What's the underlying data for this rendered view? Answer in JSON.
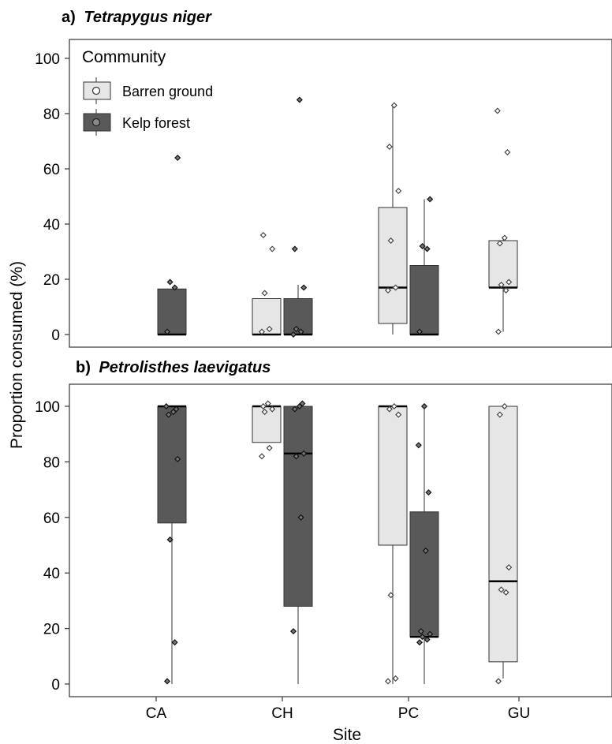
{
  "figure": {
    "ylabel": "Proportion consumed (%)",
    "xlabel": "Site"
  },
  "legend": {
    "title": "Community",
    "items": [
      {
        "label": "Barren ground",
        "fill": "#e6e6e6"
      },
      {
        "label": "Kelp forest",
        "fill": "#595959"
      }
    ]
  },
  "chart_data": [
    {
      "type": "box",
      "panel_prefix": "a)",
      "title": "Tetrapygus niger",
      "categories": [
        "CA",
        "CH",
        "PC",
        "GU"
      ],
      "yticks": [
        0,
        20,
        40,
        60,
        80,
        100
      ],
      "ylim": [
        -4,
        106
      ],
      "series": [
        {
          "name": "Barren ground",
          "color": "#e6e6e6",
          "boxes": [
            null,
            {
              "category": "CH",
              "q1": 0,
              "median": 0,
              "q3": 13,
              "wlo": 0,
              "whi": 13,
              "points": [
                1,
                2,
                15,
                31,
                36
              ]
            },
            {
              "category": "PC",
              "q1": 4,
              "median": 17,
              "q3": 46,
              "wlo": 0,
              "whi": 83,
              "points": [
                16,
                17,
                34,
                52,
                68,
                83
              ]
            },
            {
              "category": "GU",
              "q1": 17,
              "median": 17,
              "q3": 34,
              "wlo": 1,
              "whi": 35,
              "points": [
                1,
                16,
                18,
                19,
                33,
                35,
                66,
                81
              ]
            }
          ]
        },
        {
          "name": "Kelp forest",
          "color": "#595959",
          "boxes": [
            {
              "category": "CA",
              "q1": 0,
              "median": 0,
              "q3": 16.5,
              "wlo": 0,
              "whi": 16.5,
              "points": [
                1,
                17,
                19,
                64
              ]
            },
            {
              "category": "CH",
              "q1": 0,
              "median": 0,
              "q3": 13,
              "wlo": 0,
              "whi": 18,
              "points": [
                0,
                1,
                2,
                17,
                31,
                85
              ]
            },
            {
              "category": "PC",
              "q1": 0,
              "median": 0,
              "q3": 25,
              "wlo": 0,
              "whi": 49,
              "points": [
                1,
                31,
                32,
                49
              ]
            },
            null
          ]
        }
      ]
    },
    {
      "type": "box",
      "panel_prefix": "b)",
      "title": "Petrolisthes laevigatus",
      "categories": [
        "CA",
        "CH",
        "PC",
        "GU"
      ],
      "yticks": [
        0,
        20,
        40,
        60,
        80,
        100
      ],
      "ylim": [
        -4,
        106
      ],
      "series": [
        {
          "name": "Barren ground",
          "color": "#e6e6e6",
          "boxes": [
            null,
            {
              "category": "CH",
              "q1": 87,
              "median": 100,
              "q3": 100,
              "wlo": 87,
              "whi": 100,
              "points": [
                82,
                85,
                98,
                99,
                100,
                101
              ]
            },
            {
              "category": "PC",
              "q1": 50,
              "median": 100,
              "q3": 100,
              "wlo": 0,
              "whi": 100,
              "points": [
                1,
                2,
                32,
                97,
                99,
                100
              ]
            },
            {
              "category": "GU",
              "q1": 8,
              "median": 37,
              "q3": 100,
              "wlo": 2,
              "whi": 100,
              "points": [
                1,
                33,
                34,
                42,
                97,
                100
              ]
            }
          ]
        },
        {
          "name": "Kelp forest",
          "color": "#595959",
          "boxes": [
            {
              "category": "CA",
              "q1": 58,
              "median": 100,
              "q3": 100,
              "wlo": 0,
              "whi": 100,
              "points": [
                1,
                15,
                52,
                81,
                97,
                98,
                99,
                100
              ]
            },
            {
              "category": "CH",
              "q1": 28,
              "median": 83,
              "q3": 100,
              "wlo": 0,
              "whi": 100,
              "points": [
                19,
                60,
                82,
                83,
                99,
                100,
                101
              ]
            },
            {
              "category": "PC",
              "q1": 17,
              "median": 17,
              "q3": 62,
              "wlo": 0,
              "whi": 100,
              "points": [
                15,
                16,
                17,
                18,
                19,
                48,
                69,
                86,
                100
              ]
            },
            null
          ]
        }
      ]
    }
  ]
}
